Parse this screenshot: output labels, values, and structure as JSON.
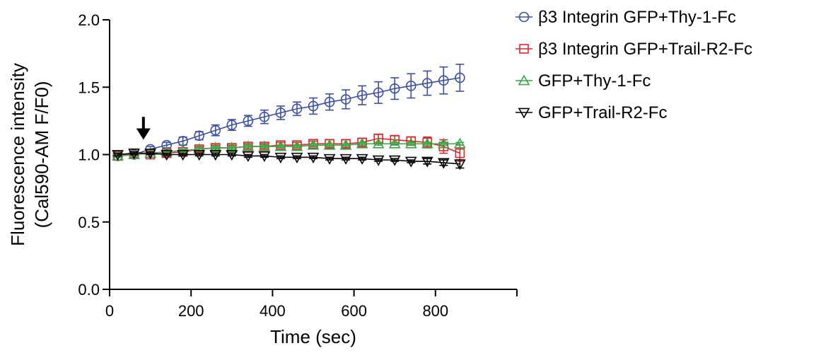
{
  "chart_data": {
    "type": "line",
    "title": "",
    "xlabel": "Time (sec)",
    "ylabel_lines": [
      "Fluorescence intensity",
      "(Cal590-AM F/F0)"
    ],
    "xlim": [
      0,
      1000
    ],
    "ylim": [
      0,
      2.0
    ],
    "x_ticks": [
      0,
      200,
      400,
      600,
      800
    ],
    "x_tick_labels": [
      "0",
      "200",
      "400",
      "600",
      "800"
    ],
    "x_minor_ticks": [
      1000
    ],
    "y_ticks": [
      0,
      0.5,
      1.0,
      1.5,
      2.0
    ],
    "y_tick_labels": [
      "0.0",
      "0.5",
      "1.0",
      "1.5",
      "2.0"
    ],
    "grid": false,
    "legend_position": "top-right",
    "annotation": {
      "type": "arrow-down",
      "x": 83,
      "y_tip": 1.11,
      "y_tail": 1.28
    },
    "x": [
      20,
      60,
      100,
      140,
      180,
      220,
      260,
      300,
      340,
      380,
      420,
      460,
      500,
      540,
      580,
      620,
      660,
      700,
      740,
      780,
      820,
      860
    ],
    "series": [
      {
        "name": "β3 Integrin GFP+Thy-1-Fc",
        "color": "#3b4fa8",
        "marker": "circle",
        "y": [
          0.99,
          1.0,
          1.04,
          1.07,
          1.1,
          1.14,
          1.18,
          1.22,
          1.25,
          1.28,
          1.31,
          1.34,
          1.36,
          1.39,
          1.41,
          1.44,
          1.46,
          1.49,
          1.51,
          1.53,
          1.55,
          1.57
        ],
        "err": [
          0.01,
          0.01,
          0.02,
          0.02,
          0.03,
          0.03,
          0.04,
          0.04,
          0.04,
          0.05,
          0.05,
          0.05,
          0.06,
          0.06,
          0.07,
          0.07,
          0.08,
          0.08,
          0.09,
          0.09,
          0.1,
          0.1
        ]
      },
      {
        "name": "β3 Integrin GFP+Trail-R2-Fc",
        "color": "#e0242b",
        "marker": "square",
        "y": [
          0.99,
          1.01,
          1.0,
          1.01,
          1.02,
          1.04,
          1.05,
          1.05,
          1.06,
          1.06,
          1.07,
          1.07,
          1.08,
          1.08,
          1.08,
          1.09,
          1.12,
          1.11,
          1.1,
          1.09,
          1.06,
          1.01
        ],
        "err": [
          0.01,
          0.01,
          0.02,
          0.02,
          0.02,
          0.02,
          0.02,
          0.02,
          0.02,
          0.02,
          0.02,
          0.02,
          0.02,
          0.03,
          0.03,
          0.03,
          0.03,
          0.03,
          0.03,
          0.04,
          0.05,
          0.06
        ]
      },
      {
        "name": "GFP+Thy-1-Fc",
        "color": "#37a845",
        "marker": "triangle-up",
        "y": [
          0.99,
          1.0,
          1.01,
          1.02,
          1.03,
          1.04,
          1.05,
          1.05,
          1.06,
          1.06,
          1.06,
          1.06,
          1.07,
          1.07,
          1.07,
          1.08,
          1.08,
          1.08,
          1.08,
          1.08,
          1.08,
          1.08
        ],
        "err": [
          0.01,
          0.01,
          0.01,
          0.01,
          0.01,
          0.01,
          0.01,
          0.01,
          0.01,
          0.01,
          0.01,
          0.01,
          0.01,
          0.01,
          0.01,
          0.01,
          0.01,
          0.01,
          0.01,
          0.01,
          0.01,
          0.01
        ]
      },
      {
        "name": "GFP+Trail-R2-Fc",
        "color": "#000000",
        "marker": "triangle-down",
        "y": [
          1.0,
          1.01,
          1.01,
          1.0,
          1.0,
          1.0,
          1.0,
          1.0,
          0.99,
          0.99,
          0.98,
          0.98,
          0.98,
          0.97,
          0.97,
          0.97,
          0.96,
          0.96,
          0.95,
          0.95,
          0.94,
          0.93
        ],
        "err": [
          0.01,
          0.01,
          0.01,
          0.01,
          0.01,
          0.01,
          0.01,
          0.01,
          0.01,
          0.01,
          0.01,
          0.01,
          0.01,
          0.01,
          0.01,
          0.01,
          0.01,
          0.01,
          0.01,
          0.02,
          0.02,
          0.03
        ]
      }
    ]
  }
}
